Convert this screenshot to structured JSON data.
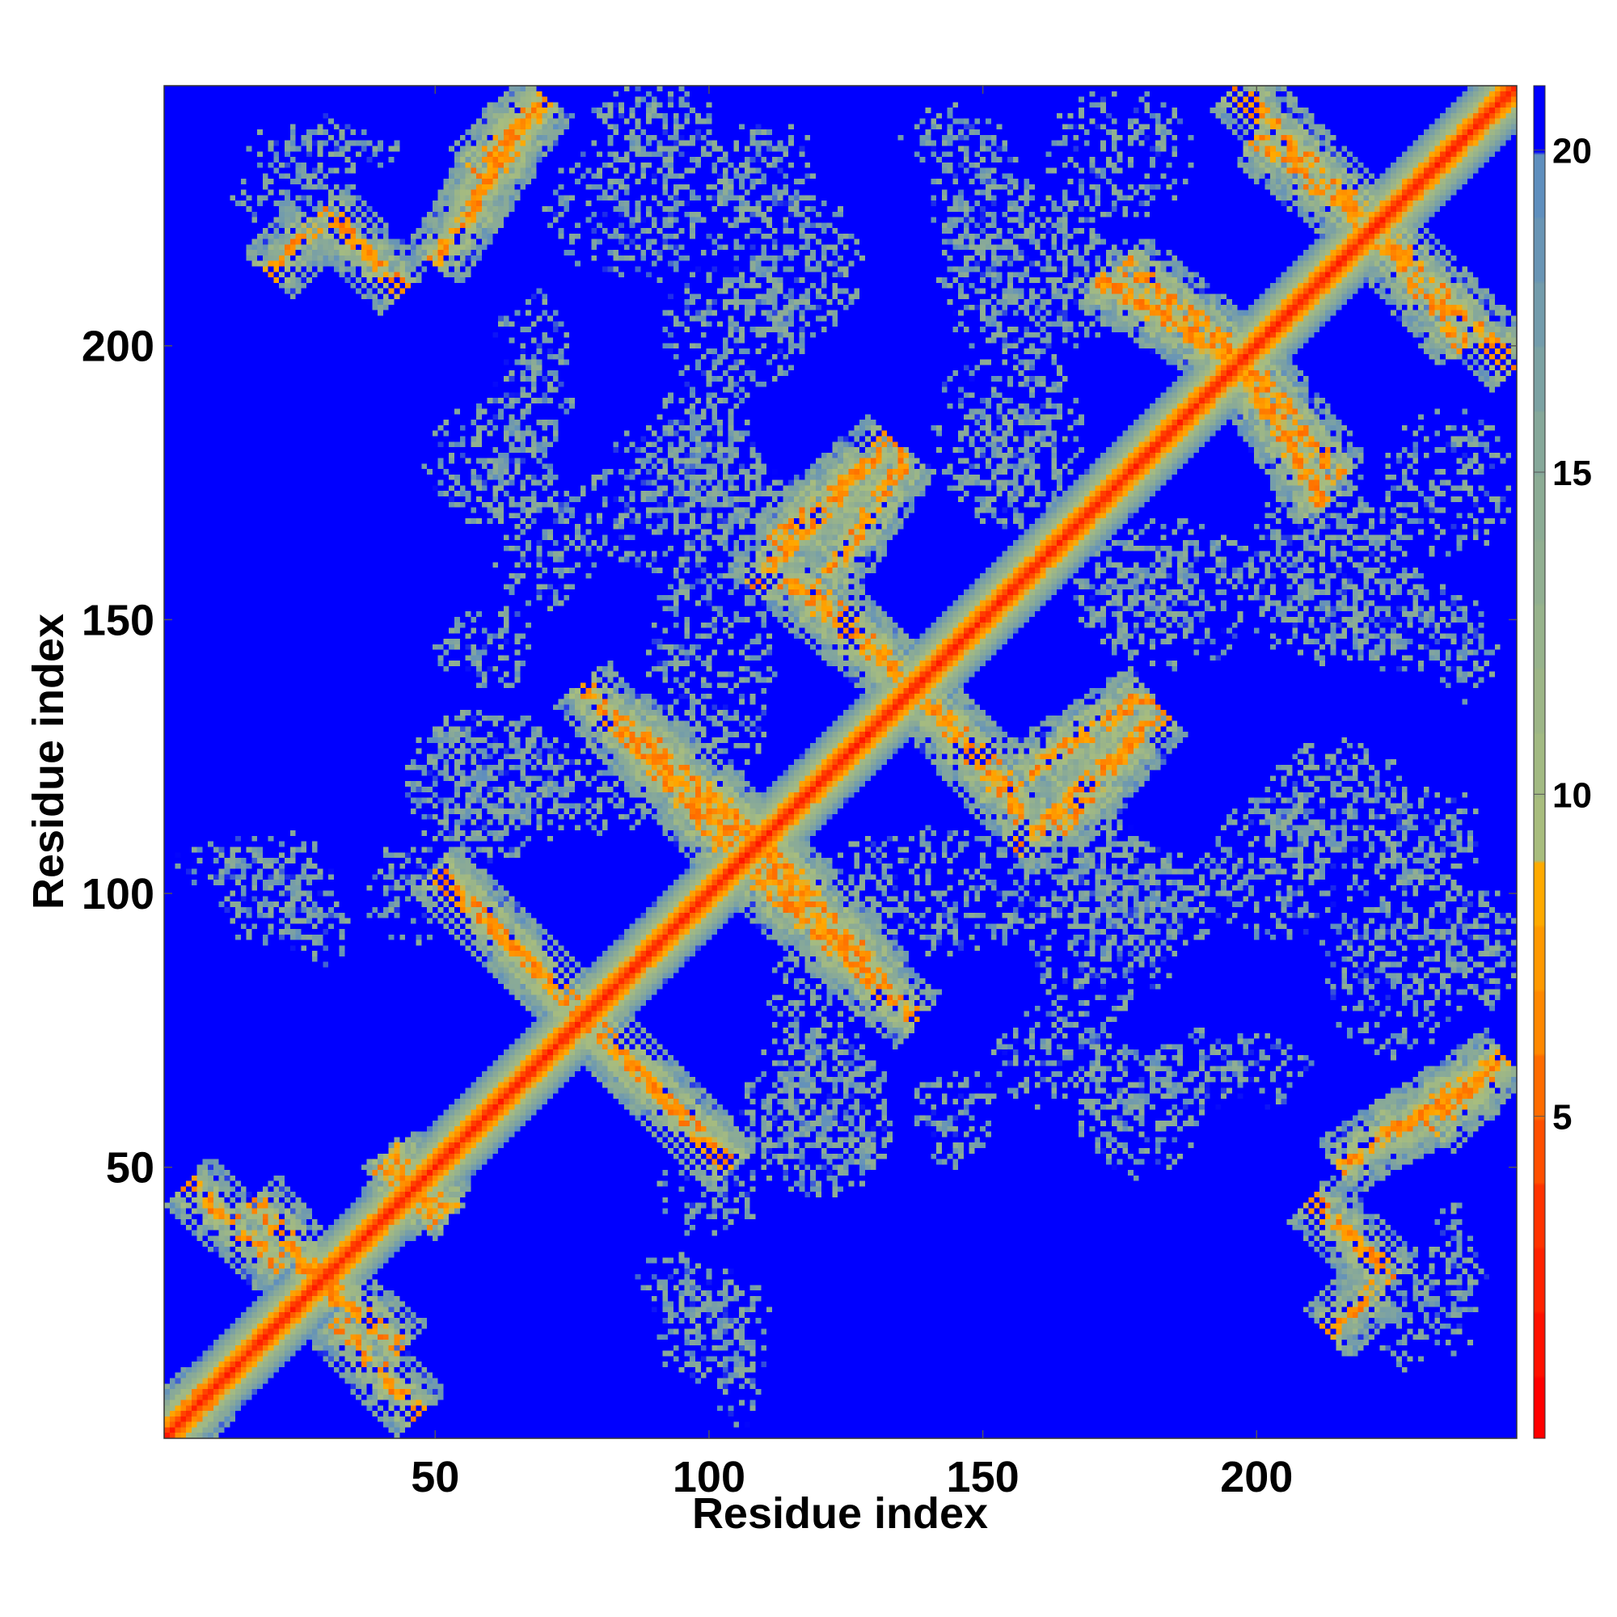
{
  "chart_data": {
    "type": "heatmap",
    "title": "",
    "xlabel": "Residue index",
    "ylabel": "Residue index",
    "xlim": [
      1,
      247
    ],
    "ylim": [
      1,
      247
    ],
    "xticks": [
      50,
      100,
      150,
      200
    ],
    "yticks": [
      50,
      100,
      150,
      200
    ],
    "colorbar": {
      "ticks": [
        5,
        10,
        15,
        20
      ],
      "range": [
        0,
        21
      ],
      "scale": [
        {
          "value": 0,
          "color": "#ff0000"
        },
        {
          "value": 3,
          "color": "#ff3300"
        },
        {
          "value": 6,
          "color": "#ff8800"
        },
        {
          "value": 8,
          "color": "#ffaa00"
        },
        {
          "value": 9,
          "color": "#a8bd7e"
        },
        {
          "value": 15,
          "color": "#86a89a"
        },
        {
          "value": 19,
          "color": "#5f8fbe"
        },
        {
          "value": 20,
          "color": "#0000ff"
        }
      ]
    },
    "diagonal_band": {
      "core_value": 2,
      "halfwidth": 8
    },
    "contact_bands": [
      {
        "from": [
          1,
          2
        ],
        "to": [
          8,
          9
        ],
        "value": 12
      },
      {
        "from": [
          5,
          47
        ],
        "to": [
          22,
          32
        ],
        "value": 10
      },
      {
        "from": [
          26,
          32
        ],
        "to": [
          44,
          17
        ],
        "value": 10
      },
      {
        "from": [
          40,
          50
        ],
        "to": [
          53,
          42
        ],
        "value": 10
      },
      {
        "from": [
          50,
          104
        ],
        "to": [
          77,
          78
        ],
        "value": 10
      },
      {
        "from": [
          77,
          78
        ],
        "to": [
          104,
          50
        ],
        "value": 10
      },
      {
        "from": [
          57,
          232
        ],
        "to": [
          70,
          245
        ],
        "value": 10
      },
      {
        "from": [
          56,
          224
        ],
        "to": [
          65,
          241
        ],
        "value": 12
      },
      {
        "from": [
          77,
          138
        ],
        "to": [
          103,
          108
        ],
        "value": 10
      },
      {
        "from": [
          100,
          119
        ],
        "to": [
          132,
          85
        ],
        "value": 10
      },
      {
        "from": [
          107,
          108
        ],
        "to": [
          134,
          80
        ],
        "value": 10
      },
      {
        "from": [
          108,
          156
        ],
        "to": [
          133,
          183
        ],
        "value": 10
      },
      {
        "from": [
          112,
          164
        ],
        "to": [
          128,
          178
        ],
        "value": 12
      },
      {
        "from": [
          118,
          157
        ],
        "to": [
          138,
          137
        ],
        "value": 10
      },
      {
        "from": [
          138,
          137
        ],
        "to": [
          157,
          114
        ],
        "value": 10
      },
      {
        "from": [
          158,
          122
        ],
        "to": [
          180,
          136
        ],
        "value": 10
      },
      {
        "from": [
          176,
          215
        ],
        "to": [
          195,
          200
        ],
        "value": 10
      },
      {
        "from": [
          195,
          200
        ],
        "to": [
          212,
          171
        ],
        "value": 10
      },
      {
        "from": [
          200,
          238
        ],
        "to": [
          220,
          222
        ],
        "value": 10
      },
      {
        "from": [
          222,
          222
        ],
        "to": [
          247,
          196
        ],
        "value": 10
      },
      {
        "from": [
          215,
          50
        ],
        "to": [
          245,
          70
        ],
        "value": 10
      },
      {
        "from": [
          210,
          44
        ],
        "to": [
          225,
          30
        ],
        "value": 12
      },
      {
        "from": [
          213,
          20
        ],
        "to": [
          222,
          28
        ],
        "value": 14
      }
    ],
    "noise_patches": [
      {
        "center": [
          30,
          236
        ],
        "radius": [
          14,
          6
        ]
      },
      {
        "center": [
          88,
          225
        ],
        "radius": [
          18,
          14
        ]
      },
      {
        "center": [
          145,
          238
        ],
        "radius": [
          10,
          6
        ]
      },
      {
        "center": [
          105,
          204
        ],
        "radius": [
          14,
          12
        ]
      },
      {
        "center": [
          155,
          210
        ],
        "radius": [
          14,
          12
        ]
      },
      {
        "center": [
          95,
          172
        ],
        "radius": [
          20,
          14
        ]
      },
      {
        "center": [
          60,
          178
        ],
        "radius": [
          12,
          12
        ]
      },
      {
        "center": [
          155,
          178
        ],
        "radius": [
          10,
          12
        ]
      },
      {
        "center": [
          215,
          165
        ],
        "radius": [
          16,
          12
        ]
      },
      {
        "center": [
          235,
          175
        ],
        "radius": [
          12,
          14
        ]
      },
      {
        "center": [
          185,
          155
        ],
        "radius": [
          18,
          14
        ]
      },
      {
        "center": [
          225,
          150
        ],
        "radius": [
          12,
          10
        ]
      },
      {
        "center": [
          60,
          145
        ],
        "radius": [
          10,
          8
        ]
      },
      {
        "center": [
          60,
          120
        ],
        "radius": [
          16,
          14
        ]
      },
      {
        "center": [
          140,
          100
        ],
        "radius": [
          22,
          12
        ]
      },
      {
        "center": [
          180,
          100
        ],
        "radius": [
          18,
          10
        ]
      },
      {
        "center": [
          215,
          115
        ],
        "radius": [
          14,
          14
        ]
      },
      {
        "center": [
          232,
          110
        ],
        "radius": [
          10,
          10
        ]
      },
      {
        "center": [
          240,
          90
        ],
        "radius": [
          10,
          12
        ]
      },
      {
        "center": [
          12,
          105
        ],
        "radius": [
          10,
          6
        ]
      },
      {
        "center": [
          25,
          100
        ],
        "radius": [
          6,
          12
        ]
      },
      {
        "center": [
          120,
          60
        ],
        "radius": [
          14,
          14
        ]
      },
      {
        "center": [
          165,
          70
        ],
        "radius": [
          14,
          10
        ]
      },
      {
        "center": [
          195,
          68
        ],
        "radius": [
          16,
          8
        ]
      },
      {
        "center": [
          100,
          45
        ],
        "radius": [
          10,
          8
        ]
      },
      {
        "center": [
          100,
          20
        ],
        "radius": [
          10,
          10
        ]
      },
      {
        "center": [
          95,
          30
        ],
        "radius": [
          10,
          4
        ]
      },
      {
        "center": [
          227,
          25
        ],
        "radius": [
          6,
          12
        ]
      },
      {
        "center": [
          120,
          80
        ],
        "radius": [
          10,
          10
        ]
      }
    ]
  }
}
